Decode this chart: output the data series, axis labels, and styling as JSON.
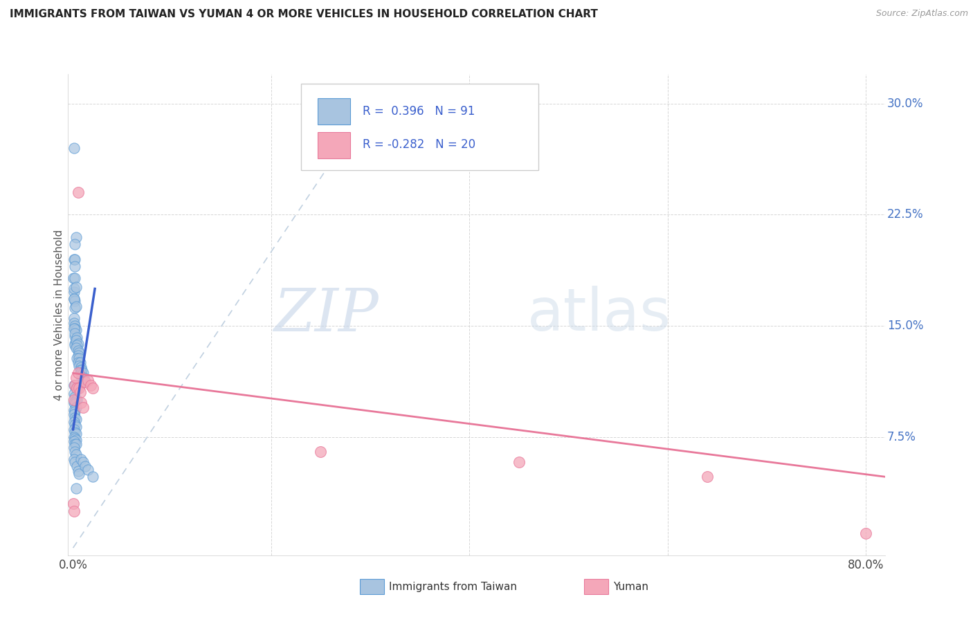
{
  "title": "IMMIGRANTS FROM TAIWAN VS YUMAN 4 OR MORE VEHICLES IN HOUSEHOLD CORRELATION CHART",
  "source": "Source: ZipAtlas.com",
  "ylabel": "4 or more Vehicles in Household",
  "xlim": [
    -0.005,
    0.82
  ],
  "ylim": [
    -0.005,
    0.32
  ],
  "taiwan_color": "#a8c4e0",
  "taiwan_edge_color": "#5b9bd5",
  "yuman_color": "#f4a7b9",
  "yuman_edge_color": "#e8789a",
  "taiwan_line_color": "#3a5fcd",
  "yuman_line_color": "#e8789a",
  "diagonal_color": "#c0d0e0",
  "R_taiwan": 0.396,
  "N_taiwan": 91,
  "R_yuman": -0.282,
  "N_yuman": 20,
  "watermark_zip": "ZIP",
  "watermark_atlas": "atlas",
  "taiwan_points": [
    [
      0.0008,
      0.27
    ],
    [
      0.003,
      0.21
    ],
    [
      0.002,
      0.205
    ],
    [
      0.001,
      0.195
    ],
    [
      0.0005,
      0.182
    ],
    [
      0.002,
      0.182
    ],
    [
      0.001,
      0.173
    ],
    [
      0.0008,
      0.168
    ],
    [
      0.002,
      0.167
    ],
    [
      0.0015,
      0.195
    ],
    [
      0.002,
      0.19
    ],
    [
      0.001,
      0.175
    ],
    [
      0.003,
      0.176
    ],
    [
      0.001,
      0.168
    ],
    [
      0.0015,
      0.162
    ],
    [
      0.003,
      0.163
    ],
    [
      0.001,
      0.155
    ],
    [
      0.001,
      0.152
    ],
    [
      0.002,
      0.15
    ],
    [
      0.002,
      0.148
    ],
    [
      0.003,
      0.147
    ],
    [
      0.002,
      0.143
    ],
    [
      0.003,
      0.14
    ],
    [
      0.002,
      0.138
    ],
    [
      0.0015,
      0.137
    ],
    [
      0.001,
      0.148
    ],
    [
      0.002,
      0.145
    ],
    [
      0.004,
      0.142
    ],
    [
      0.003,
      0.14
    ],
    [
      0.005,
      0.138
    ],
    [
      0.004,
      0.137
    ],
    [
      0.003,
      0.135
    ],
    [
      0.005,
      0.133
    ],
    [
      0.006,
      0.132
    ],
    [
      0.005,
      0.13
    ],
    [
      0.004,
      0.128
    ],
    [
      0.006,
      0.128
    ],
    [
      0.005,
      0.125
    ],
    [
      0.007,
      0.125
    ],
    [
      0.006,
      0.123
    ],
    [
      0.008,
      0.122
    ],
    [
      0.007,
      0.12
    ],
    [
      0.009,
      0.12
    ],
    [
      0.008,
      0.118
    ],
    [
      0.01,
      0.118
    ],
    [
      0.009,
      0.115
    ],
    [
      0.011,
      0.115
    ],
    [
      0.01,
      0.112
    ],
    [
      0.012,
      0.112
    ],
    [
      0.001,
      0.11
    ],
    [
      0.002,
      0.11
    ],
    [
      0.003,
      0.108
    ],
    [
      0.004,
      0.107
    ],
    [
      0.001,
      0.104
    ],
    [
      0.002,
      0.102
    ],
    [
      0.003,
      0.1
    ],
    [
      0.004,
      0.1
    ],
    [
      0.001,
      0.098
    ],
    [
      0.002,
      0.097
    ],
    [
      0.003,
      0.095
    ],
    [
      0.001,
      0.093
    ],
    [
      0.002,
      0.092
    ],
    [
      0.001,
      0.09
    ],
    [
      0.002,
      0.088
    ],
    [
      0.003,
      0.087
    ],
    [
      0.001,
      0.085
    ],
    [
      0.002,
      0.083
    ],
    [
      0.003,
      0.082
    ],
    [
      0.001,
      0.08
    ],
    [
      0.002,
      0.078
    ],
    [
      0.003,
      0.077
    ],
    [
      0.001,
      0.075
    ],
    [
      0.002,
      0.074
    ],
    [
      0.003,
      0.073
    ],
    [
      0.001,
      0.072
    ],
    [
      0.002,
      0.07
    ],
    [
      0.003,
      0.07
    ],
    [
      0.001,
      0.068
    ],
    [
      0.002,
      0.065
    ],
    [
      0.003,
      0.063
    ],
    [
      0.001,
      0.06
    ],
    [
      0.002,
      0.058
    ],
    [
      0.004,
      0.055
    ],
    [
      0.005,
      0.052
    ],
    [
      0.006,
      0.05
    ],
    [
      0.008,
      0.06
    ],
    [
      0.01,
      0.058
    ],
    [
      0.012,
      0.055
    ],
    [
      0.015,
      0.053
    ],
    [
      0.02,
      0.048
    ],
    [
      0.003,
      0.04
    ]
  ],
  "yuman_points": [
    [
      0.0005,
      0.03
    ],
    [
      0.001,
      0.025
    ],
    [
      0.001,
      0.1
    ],
    [
      0.002,
      0.11
    ],
    [
      0.003,
      0.115
    ],
    [
      0.004,
      0.108
    ],
    [
      0.005,
      0.118
    ],
    [
      0.006,
      0.108
    ],
    [
      0.007,
      0.105
    ],
    [
      0.008,
      0.098
    ],
    [
      0.01,
      0.095
    ],
    [
      0.012,
      0.112
    ],
    [
      0.015,
      0.113
    ],
    [
      0.018,
      0.11
    ],
    [
      0.02,
      0.108
    ],
    [
      0.005,
      0.24
    ],
    [
      0.25,
      0.065
    ],
    [
      0.45,
      0.058
    ],
    [
      0.64,
      0.048
    ],
    [
      0.8,
      0.01
    ]
  ],
  "taiwan_line_x": [
    0.0,
    0.022
  ],
  "taiwan_line_y": [
    0.08,
    0.175
  ],
  "yuman_line_x": [
    0.0,
    0.82
  ],
  "yuman_line_y": [
    0.118,
    0.048
  ],
  "diag_line_x": [
    0.0,
    0.31
  ],
  "diag_line_y": [
    0.0,
    0.31
  ]
}
